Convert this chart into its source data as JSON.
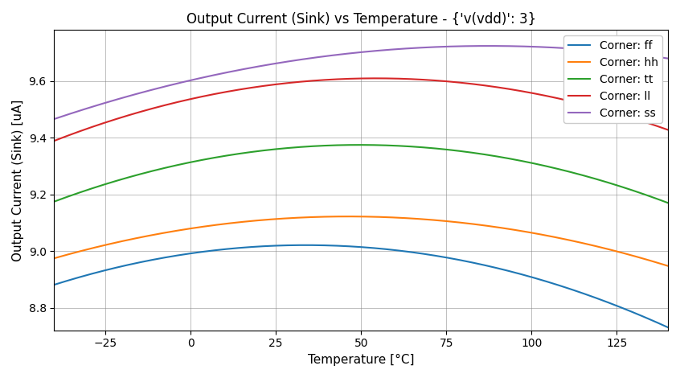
{
  "title": "Output Current (Sink) vs Temperature - {'v(vdd)': 3}",
  "xlabel": "Temperature [°C]",
  "ylabel": "Output Current (Sink) [uA]",
  "corners": [
    {
      "label": "Corner: ff",
      "color": "#1f77b4",
      "xpts": [
        -40,
        30,
        75,
        125,
        140
      ],
      "ypts": [
        8.885,
        9.002,
        8.998,
        8.8,
        8.73
      ]
    },
    {
      "label": "Corner: hh",
      "color": "#ff7f0e",
      "xpts": [
        -40,
        50,
        75,
        125,
        140
      ],
      "ypts": [
        8.975,
        9.115,
        9.112,
        9.0,
        8.945
      ]
    },
    {
      "label": "Corner: tt",
      "color": "#2ca02c",
      "xpts": [
        -40,
        50,
        75,
        125,
        140
      ],
      "ypts": [
        9.175,
        9.368,
        9.366,
        9.23,
        9.17
      ]
    },
    {
      "label": "Corner: ll",
      "color": "#d62728",
      "xpts": [
        -40,
        65,
        75,
        125,
        140
      ],
      "ypts": [
        9.39,
        9.6,
        9.598,
        9.51,
        9.41
      ]
    },
    {
      "label": "Corner: ss",
      "color": "#9467bd",
      "xpts": [
        -40,
        70,
        75,
        100,
        125,
        140
      ],
      "ypts": [
        9.465,
        9.725,
        9.724,
        9.715,
        9.69,
        9.69
      ]
    }
  ],
  "x_ticks": [
    -25,
    0,
    25,
    50,
    75,
    100,
    125
  ],
  "ylim": [
    8.72,
    9.78
  ],
  "xlim": [
    -40,
    140
  ]
}
